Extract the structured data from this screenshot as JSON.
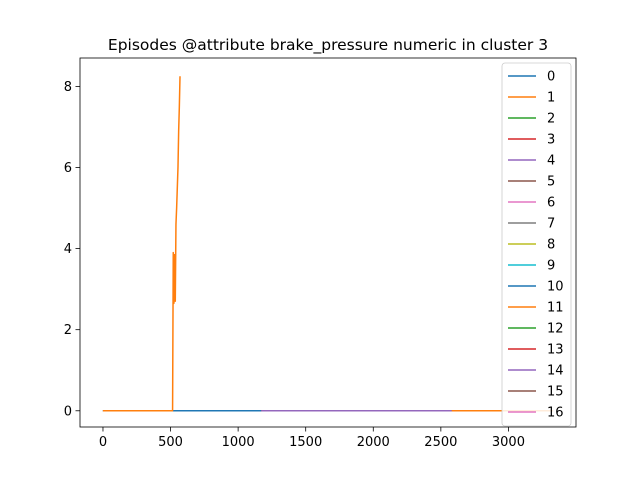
{
  "chart_data": {
    "type": "line",
    "title": "Episodes @attribute brake_pressure numeric in cluster 3",
    "xlabel": "",
    "ylabel": "",
    "xlim": [
      -170,
      3500
    ],
    "ylim": [
      -0.4,
      8.7
    ],
    "x_ticks": [
      0,
      500,
      1000,
      1500,
      2000,
      2500,
      3000
    ],
    "y_ticks": [
      0,
      2,
      4,
      6,
      8
    ],
    "grid": false,
    "legend": "top-right",
    "series": [
      {
        "name": "0",
        "color": "#1f77b4",
        "x": [
          0,
          1170
        ],
        "y": [
          0,
          0
        ]
      },
      {
        "name": "1",
        "color": "#ff7f0e",
        "x": [
          0,
          515,
          520,
          525,
          530,
          535,
          540,
          545,
          550,
          555,
          560,
          565,
          570
        ],
        "y": [
          0,
          0,
          3.9,
          2.65,
          3.85,
          2.7,
          4.6,
          5.0,
          5.5,
          6.0,
          6.9,
          7.5,
          8.25
        ]
      },
      {
        "name": "2",
        "color": "#2ca02c",
        "x": [
          0,
          1170
        ],
        "y": [
          0,
          0
        ]
      },
      {
        "name": "3",
        "color": "#d62728",
        "x": [
          0,
          1170
        ],
        "y": [
          0,
          0
        ]
      },
      {
        "name": "4",
        "color": "#9467bd",
        "x": [
          0,
          2580
        ],
        "y": [
          0,
          0
        ]
      },
      {
        "name": "5",
        "color": "#8c564b",
        "x": [
          0,
          1170
        ],
        "y": [
          0,
          0
        ]
      },
      {
        "name": "6",
        "color": "#e377c2",
        "x": [
          0,
          1170
        ],
        "y": [
          0,
          0
        ]
      },
      {
        "name": "7",
        "color": "#7f7f7f",
        "x": [
          0,
          2580
        ],
        "y": [
          0,
          0
        ]
      },
      {
        "name": "8",
        "color": "#bcbd22",
        "x": [
          0,
          1170
        ],
        "y": [
          0,
          0
        ]
      },
      {
        "name": "9",
        "color": "#17becf",
        "x": [
          0,
          1170
        ],
        "y": [
          0,
          0
        ]
      },
      {
        "name": "10",
        "color": "#1f77b4",
        "x": [
          0,
          1170
        ],
        "y": [
          0,
          0
        ]
      },
      {
        "name": "11",
        "color": "#ff7f0e",
        "x": [
          0,
          3330
        ],
        "y": [
          0,
          0
        ]
      },
      {
        "name": "12",
        "color": "#2ca02c",
        "x": [
          0,
          1170
        ],
        "y": [
          0,
          0
        ]
      },
      {
        "name": "13",
        "color": "#d62728",
        "x": [
          0,
          1170
        ],
        "y": [
          0,
          0
        ]
      },
      {
        "name": "14",
        "color": "#9467bd",
        "x": [
          0,
          2580
        ],
        "y": [
          0,
          0
        ]
      },
      {
        "name": "15",
        "color": "#8c564b",
        "x": [
          0,
          1170
        ],
        "y": [
          0,
          0
        ]
      },
      {
        "name": "16",
        "color": "#e377c2",
        "x": [
          0,
          1170
        ],
        "y": [
          0,
          0
        ]
      }
    ]
  }
}
